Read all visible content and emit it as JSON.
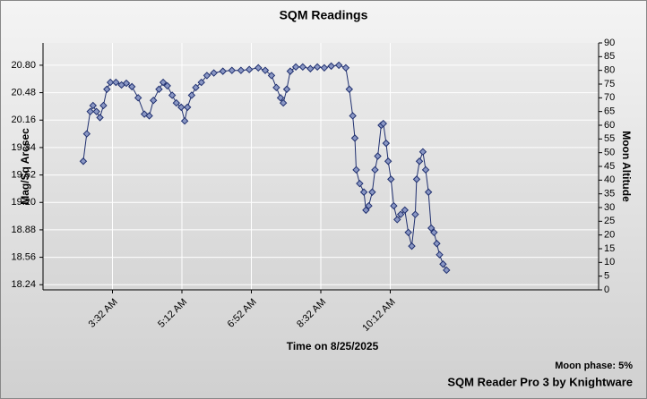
{
  "chart_data": {
    "type": "line",
    "title": "SQM Readings",
    "x_label": "Time on 8/25/2025",
    "y_label": "Mag/Sq Arcsec",
    "y2_label": "Moon Altitude",
    "annotations": [
      "Moon phase: 5%",
      "SQM Reader Pro 3 by Knightware"
    ],
    "color": "#1f2f6f",
    "marker_color": "#8a97c4",
    "grid": true,
    "xlim": [
      "1:52 AM",
      "3:12 PM"
    ],
    "xticks": [
      "3:32 AM",
      "5:12 AM",
      "6:52 AM",
      "8:32 AM",
      "10:12 AM"
    ],
    "ylim": [
      18.18,
      21.06
    ],
    "yticks": [
      {
        "value": 18.24,
        "label": "18.24"
      },
      {
        "value": 18.56,
        "label": "18.56"
      },
      {
        "value": 18.88,
        "label": "18.88"
      },
      {
        "value": 19.2,
        "label": "19.20"
      },
      {
        "value": 19.52,
        "label": "19.52"
      },
      {
        "value": 19.84,
        "label": "19.84"
      },
      {
        "value": 20.16,
        "label": "20.16"
      },
      {
        "value": 20.48,
        "label": "20.48"
      },
      {
        "value": 20.8,
        "label": "20.80"
      }
    ],
    "y2lim": [
      0,
      90
    ],
    "y2ticks": [
      0,
      5,
      10,
      15,
      20,
      25,
      30,
      35,
      40,
      45,
      50,
      55,
      60,
      65,
      70,
      75,
      80,
      85,
      90
    ],
    "x": [
      "2:50 AM",
      "2:55 AM",
      "3:00 AM",
      "3:04 AM",
      "3:09 AM",
      "3:14 AM",
      "3:19 AM",
      "3:24 AM",
      "3:29 AM",
      "3:37 AM",
      "3:45 AM",
      "3:52 AM",
      "4:00 AM",
      "4:09 AM",
      "4:18 AM",
      "4:25 AM",
      "4:31 AM",
      "4:39 AM",
      "4:45 AM",
      "4:51 AM",
      "4:58 AM",
      "5:04 AM",
      "5:11 AM",
      "5:16 AM",
      "5:20 AM",
      "5:26 AM",
      "5:32 AM",
      "5:40 AM",
      "5:48 AM",
      "5:58 AM",
      "6:11 AM",
      "6:24 AM",
      "6:37 AM",
      "6:49 AM",
      "7:02 AM",
      "7:12 AM",
      "7:21 AM",
      "7:28 AM",
      "7:34 AM",
      "7:38 AM",
      "7:43 AM",
      "7:48 AM",
      "7:56 AM",
      "8:06 AM",
      "8:17 AM",
      "8:27 AM",
      "8:37 AM",
      "8:47 AM",
      "8:58 AM",
      "9:08 AM",
      "9:13 AM",
      "9:18 AM",
      "9:21 AM",
      "9:23 AM",
      "9:28 AM",
      "9:34 AM",
      "9:37 AM",
      "9:41 AM",
      "9:46 AM",
      "9:50 AM",
      "9:54 AM",
      "9:59 AM",
      "10:02 AM",
      "10:06 AM",
      "10:09 AM",
      "10:13 AM",
      "10:17 AM",
      "10:22 AM",
      "10:27 AM",
      "10:33 AM",
      "10:38 AM",
      "10:43 AM",
      "10:48 AM",
      "10:50 AM",
      "10:54 AM",
      "10:59 AM",
      "11:03 AM",
      "11:07 AM",
      "11:11 AM",
      "11:15 AM",
      "11:19 AM",
      "11:23 AM",
      "11:28 AM",
      "11:33 AM"
    ],
    "values": [
      19.68,
      20.0,
      20.26,
      20.33,
      20.26,
      20.19,
      20.33,
      20.52,
      20.6,
      20.6,
      20.57,
      20.59,
      20.55,
      20.42,
      20.23,
      20.21,
      20.39,
      20.52,
      20.6,
      20.56,
      20.45,
      20.36,
      20.31,
      20.15,
      20.31,
      20.45,
      20.54,
      20.6,
      20.68,
      20.71,
      20.73,
      20.74,
      20.74,
      20.75,
      20.77,
      20.74,
      20.68,
      20.54,
      20.42,
      20.36,
      20.52,
      20.73,
      20.78,
      20.78,
      20.76,
      20.78,
      20.77,
      20.79,
      20.8,
      20.77,
      20.52,
      20.21,
      19.95,
      19.58,
      19.42,
      19.32,
      19.11,
      19.16,
      19.32,
      19.58,
      19.74,
      20.1,
      20.12,
      19.89,
      19.68,
      19.47,
      19.16,
      19.0,
      19.06,
      19.11,
      18.85,
      18.69,
      19.06,
      19.47,
      19.68,
      19.79,
      19.58,
      19.32,
      18.9,
      18.85,
      18.72,
      18.59,
      18.48,
      18.41
    ]
  }
}
